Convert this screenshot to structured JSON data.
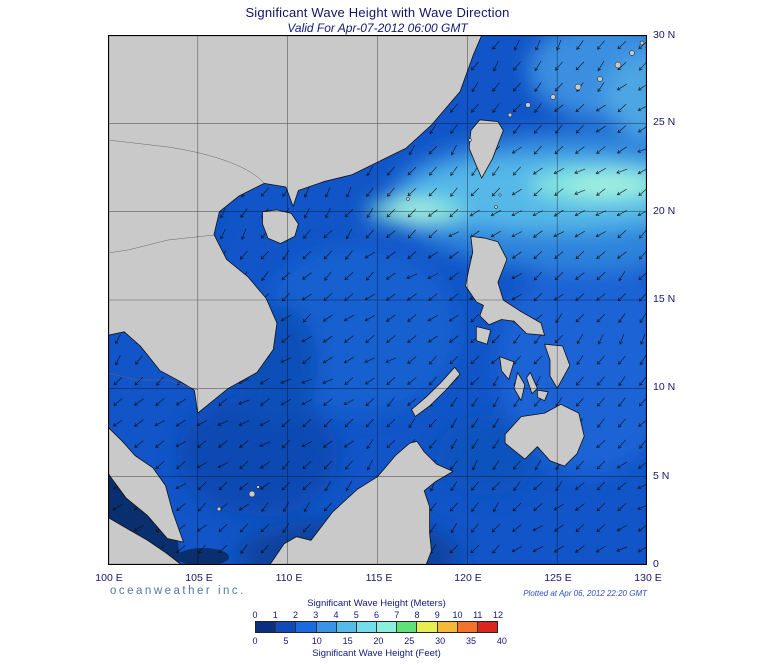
{
  "header": {
    "title": "Significant Wave Height with Wave Direction",
    "subtitle": "Valid For Apr-07-2012 06:00 GMT"
  },
  "axes": {
    "x": [
      "100 E",
      "105 E",
      "110 E",
      "115 E",
      "120 E",
      "125 E",
      "130 E"
    ],
    "y": [
      "30 N",
      "25 N",
      "20 N",
      "15 N",
      "10 N",
      "5 N",
      "0"
    ]
  },
  "footer": {
    "brand": "oceanweather inc.",
    "plotted": "Plotted at Apr 06, 2012 22:20 GMT"
  },
  "legend": {
    "meters_label": "Significant Wave Height (Meters)",
    "feet_label": "Significant Wave Height (Feet)",
    "meters_ticks": [
      "0",
      "1",
      "2",
      "3",
      "4",
      "5",
      "6",
      "7",
      "8",
      "9",
      "10",
      "11",
      "12"
    ],
    "feet_ticks": [
      "0",
      "5",
      "10",
      "15",
      "20",
      "25",
      "30",
      "35",
      "40"
    ],
    "colors": [
      "#0b2f7e",
      "#0f4ab8",
      "#1a6ae0",
      "#3b93e8",
      "#55bbe8",
      "#74dcea",
      "#8ceedd",
      "#5fe07a",
      "#e8ee52",
      "#f5b83a",
      "#f2742c",
      "#d8281e"
    ]
  },
  "map_colors": {
    "land": "#c9c9c9",
    "sea_base": "#1155c8",
    "calm_sea": "#0a2f6e",
    "peak_band": "#a8f4e0",
    "arrow": "#0d0d0d"
  }
}
